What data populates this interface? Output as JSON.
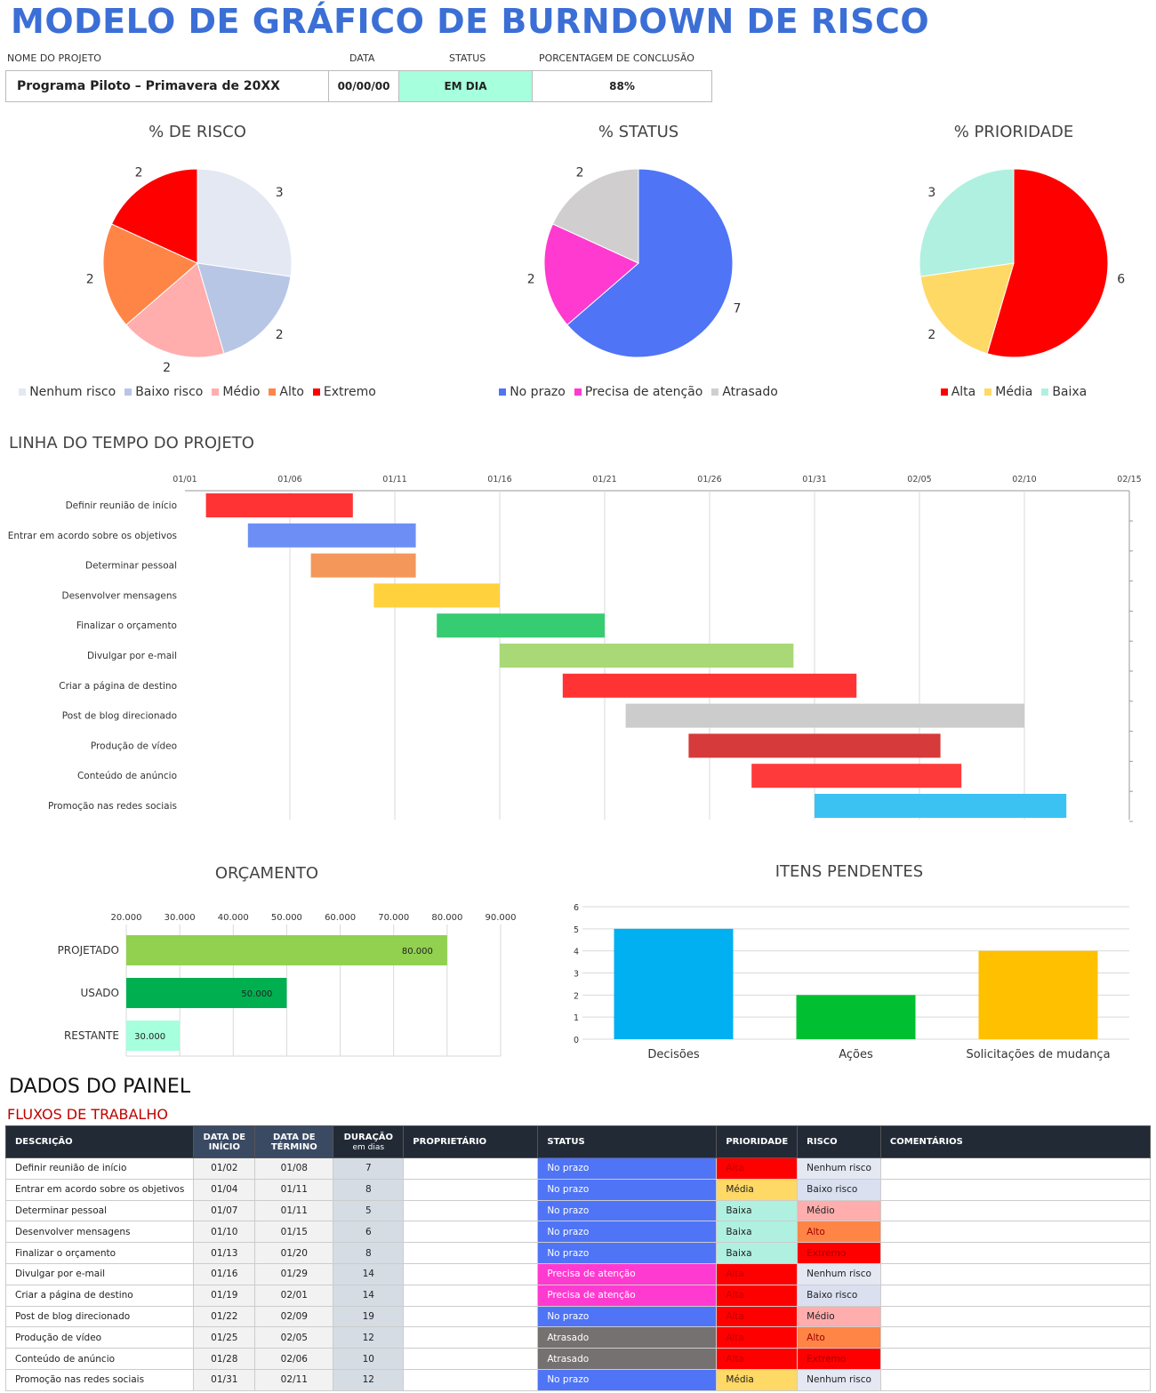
{
  "title": "MODELO DE GRÁFICO DE BURNDOWN DE RISCO",
  "project": {
    "name_label": "NOME DO PROJETO",
    "date_label": "DATA",
    "status_label": "STATUS",
    "pct_label": "PORCENTAGEM DE CONCLUSÃO",
    "name": "Programa Piloto – Primavera de 20XX",
    "date": "00/00/00",
    "status": "EM DIA",
    "pct": "88%"
  },
  "colors": {
    "no_prazo": "#4f74f5",
    "precisa": "#ff3ad0",
    "atrasado": "#767171",
    "alta": "#ff0000",
    "media": "#ffd966",
    "baixa": "#b0f0e0",
    "nenhum": "#e3e8f3",
    "baixo": "#b8c6e6",
    "medio": "#ffadad",
    "alto": "#ff8547",
    "extremo": "#ff0000"
  },
  "chart_data": [
    {
      "type": "pie",
      "title": "% DE RISCO",
      "categories": [
        "Nenhum risco",
        "Baixo risco",
        "Médio",
        "Alto",
        "Extremo"
      ],
      "values": [
        3,
        2,
        2,
        2,
        2
      ],
      "colors": [
        "#e3e8f3",
        "#b8c6e6",
        "#ffadad",
        "#ff8547",
        "#ff0000"
      ],
      "legend": "bottom"
    },
    {
      "type": "pie",
      "title": "% STATUS",
      "categories": [
        "No prazo",
        "Precisa de atenção",
        "Atrasado"
      ],
      "values": [
        7,
        2,
        2
      ],
      "colors": [
        "#4f74f5",
        "#ff3ad0",
        "#d0cece"
      ],
      "legend": "bottom"
    },
    {
      "type": "pie",
      "title": "% PRIORIDADE",
      "categories": [
        "Alta",
        "Média",
        "Baixa"
      ],
      "values": [
        6,
        2,
        3
      ],
      "colors": [
        "#ff0000",
        "#ffd966",
        "#b0f0e0"
      ],
      "legend": "bottom"
    },
    {
      "type": "bar",
      "orientation": "gantt",
      "title": "LINHA DO TEMPO DO PROJETO",
      "x_ticks": [
        "01/01",
        "01/06",
        "01/11",
        "01/16",
        "01/21",
        "01/26",
        "01/31",
        "02/05",
        "02/10",
        "02/15"
      ],
      "xlim": [
        "01/01",
        "02/15"
      ],
      "grid": true,
      "tasks": [
        {
          "name": "Definir reunião de início",
          "start": "01/02",
          "days": 7,
          "color": "#ff3333"
        },
        {
          "name": "Entrar em acordo sobre os objetivos",
          "start": "01/04",
          "days": 8,
          "color": "#6d8ff5"
        },
        {
          "name": "Determinar pessoal",
          "start": "01/07",
          "days": 5,
          "color": "#f4975a"
        },
        {
          "name": "Desenvolver mensagens",
          "start": "01/10",
          "days": 6,
          "color": "#ffd23d"
        },
        {
          "name": "Finalizar o orçamento",
          "start": "01/13",
          "days": 8,
          "color": "#36cc72"
        },
        {
          "name": "Divulgar por e-mail",
          "start": "01/16",
          "days": 14,
          "color": "#a9d977"
        },
        {
          "name": "Criar a página de destino",
          "start": "01/19",
          "days": 14,
          "color": "#ff3333"
        },
        {
          "name": "Post de blog direcionado",
          "start": "01/22",
          "days": 19,
          "color": "#cccccc"
        },
        {
          "name": "Produção de vídeo",
          "start": "01/25",
          "days": 12,
          "color": "#d63a3a"
        },
        {
          "name": "Conteúdo de anúncio",
          "start": "01/28",
          "days": 10,
          "color": "#ff3a3a"
        },
        {
          "name": "Promoção nas redes sociais",
          "start": "01/31",
          "days": 12,
          "color": "#3bc2f2"
        }
      ]
    },
    {
      "type": "bar",
      "orientation": "horizontal",
      "title": "ORÇAMENTO",
      "categories": [
        "PROJETADO",
        "USADO",
        "RESTANTE"
      ],
      "values": [
        80000,
        50000,
        30000
      ],
      "labels": [
        "80.000",
        "50.000",
        "30.000"
      ],
      "colors": [
        "#92d050",
        "#00b050",
        "#a6ffdd"
      ],
      "xlim": [
        20000,
        90000
      ],
      "x_ticks": [
        "20.000",
        "30.000",
        "40.000",
        "50.000",
        "60.000",
        "70.000",
        "80.000",
        "90.000"
      ],
      "grid": true
    },
    {
      "type": "bar",
      "title": "ITENS PENDENTES",
      "categories": [
        "Decisões",
        "Ações",
        "Solicitações de mudança"
      ],
      "values": [
        5,
        2,
        4
      ],
      "colors": [
        "#00b0f0",
        "#00c032",
        "#ffc000"
      ],
      "ylim": [
        0,
        6
      ],
      "y_ticks": [
        "0",
        "1",
        "2",
        "3",
        "4",
        "5",
        "6"
      ],
      "grid": true
    }
  ],
  "dashboard": {
    "title": "DADOS DO PAINEL",
    "subtitle": "FLUXOS DE TRABALHO",
    "headers": [
      "DESCRIÇÃO",
      "DATA DE INÍCIO",
      "DATA DE TÉRMINO",
      "DURAÇÃO",
      "em dias",
      "PROPRIETÁRIO",
      "STATUS",
      "PRIORIDADE",
      "RISCO",
      "COMENTÁRIOS"
    ],
    "rows": [
      [
        "Definir reunião de início",
        "01/02",
        "01/08",
        "7",
        "",
        "No prazo",
        "Alta",
        "Nenhum risco",
        ""
      ],
      [
        "Entrar em acordo sobre os objetivos",
        "01/04",
        "01/11",
        "8",
        "",
        "No prazo",
        "Média",
        "Baixo risco",
        ""
      ],
      [
        "Determinar pessoal",
        "01/07",
        "01/11",
        "5",
        "",
        "No prazo",
        "Baixa",
        "Médio",
        ""
      ],
      [
        "Desenvolver mensagens",
        "01/10",
        "01/15",
        "6",
        "",
        "No prazo",
        "Baixa",
        "Alto",
        ""
      ],
      [
        "Finalizar o orçamento",
        "01/13",
        "01/20",
        "8",
        "",
        "No prazo",
        "Baixa",
        "Extremo",
        ""
      ],
      [
        "Divulgar por e-mail",
        "01/16",
        "01/29",
        "14",
        "",
        "Precisa de atenção",
        "Alta",
        "Nenhum risco",
        ""
      ],
      [
        "Criar a página de destino",
        "01/19",
        "02/01",
        "14",
        "",
        "Precisa de atenção",
        "Alta",
        "Baixo risco",
        ""
      ],
      [
        "Post de blog direcionado",
        "01/22",
        "02/09",
        "19",
        "",
        "No prazo",
        "Alta",
        "Médio",
        ""
      ],
      [
        "Produção de vídeo",
        "01/25",
        "02/05",
        "12",
        "",
        "Atrasado",
        "Alta",
        "Alto",
        ""
      ],
      [
        "Conteúdo de anúncio",
        "01/28",
        "02/06",
        "10",
        "",
        "Atrasado",
        "Alta",
        "Extremo",
        ""
      ],
      [
        "Promoção nas redes sociais",
        "01/31",
        "02/11",
        "12",
        "",
        "No prazo",
        "Média",
        "Nenhum risco",
        ""
      ]
    ]
  }
}
